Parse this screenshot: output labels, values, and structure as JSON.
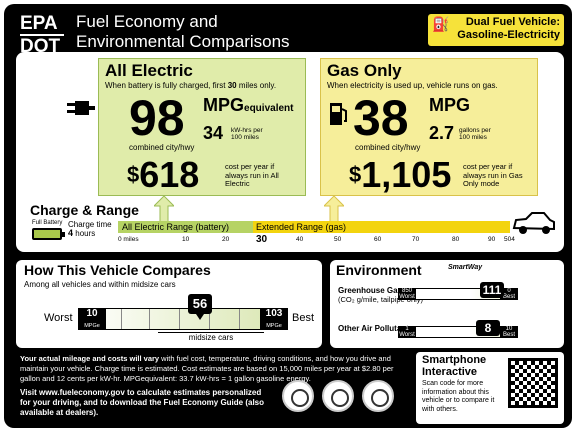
{
  "header": {
    "agency_top": "EPA",
    "agency_bottom": "DOT",
    "title_line1": "Fuel Economy and",
    "title_line2": "Environmental Comparisons",
    "vehicle_type_line1": "Dual Fuel Vehicle:",
    "vehicle_type_line2": "Gasoline-Electricity"
  },
  "electric": {
    "title": "All Electric",
    "subtitle_prefix": "When battery is fully charged, first ",
    "subtitle_bold": "30",
    "subtitle_suffix": " miles only.",
    "mpge": "98",
    "mpg_label": "MPG",
    "mpg_sublabel": "equivalent",
    "combined": "combined city/hwy",
    "kwh": "34",
    "kwh_unit": "kW-hrs per 100 miles",
    "cost_symbol": "$",
    "cost": "618",
    "cost_label": "cost per year if always run in All Electric"
  },
  "gas": {
    "title": "Gas Only",
    "subtitle": "When electricity is used up, vehicle runs on gas.",
    "mpg": "38",
    "mpg_label": "MPG",
    "combined": "combined city/hwy",
    "gallons": "2.7",
    "gallons_unit": "gallons per 100 miles",
    "cost_symbol": "$",
    "cost": "1,105",
    "cost_label": "cost per year if always run in Gas Only mode"
  },
  "charge": {
    "title": "Charge & Range",
    "full_battery": "Full Battery",
    "charge_time_label": "Charge time",
    "charge_time": "4",
    "charge_time_unit": "hours",
    "electric_range_label": "All Electric Range (battery)",
    "extended_range_label": "Extended Range (gas)",
    "ticks": [
      "0 miles",
      "10",
      "20",
      "30",
      "40",
      "50",
      "60",
      "70",
      "80",
      "90",
      "504"
    ],
    "electric_range_miles": 30,
    "total_range_miles": 504
  },
  "compare": {
    "title": "How This Vehicle Compares",
    "subtitle": "Among all vehicles and within midsize cars",
    "worst_label": "Worst",
    "best_label": "Best",
    "worst_value": "10",
    "worst_unit": "MPGe",
    "best_value": "103",
    "best_unit": "MPGe",
    "this_vehicle": "56",
    "midsize_label": "midsize cars"
  },
  "environment": {
    "title": "Environment",
    "smartway": "SmartWay",
    "ghg_label": "Greenhouse Gases",
    "ghg_sub": "(CO₂ g/mile, tailpipe only)",
    "ghg_worst": "850",
    "ghg_worst_label": "Worst",
    "ghg_best": "0",
    "ghg_best_label": "Best",
    "ghg_value": "111",
    "air_label": "Other Air Pollutants",
    "air_worst": "1",
    "air_worst_label": "Worst",
    "air_best": "10",
    "air_best_label": "Best",
    "air_value": "8"
  },
  "footer": {
    "disclaimer_bold": "Your actual mileage and costs will vary",
    "disclaimer": " with fuel cost, temperature, driving conditions, and how you drive and maintain your vehicle. Charge time is estimated. Cost estimates are based on 15,000 miles per year at $2.80 per gallon and 12 cents per kW-hr. MPGequivalent: 33.7 kW-hrs = 1 gallon gasoline energy.",
    "visit": "Visit www.fueleconomy.gov to calculate estimates personalized for your driving, and to download the Fuel Economy Guide (also available at dealers).",
    "phone_title": "Smartphone Interactive",
    "phone_text": "Scan code for more information about this vehicle or to compare it with others."
  },
  "colors": {
    "electric_green": "#e0ecaa",
    "gas_yellow": "#f6ee9a",
    "range_electric": "#b6d364",
    "range_gas": "#f3d40f",
    "label_background": "#000000"
  }
}
